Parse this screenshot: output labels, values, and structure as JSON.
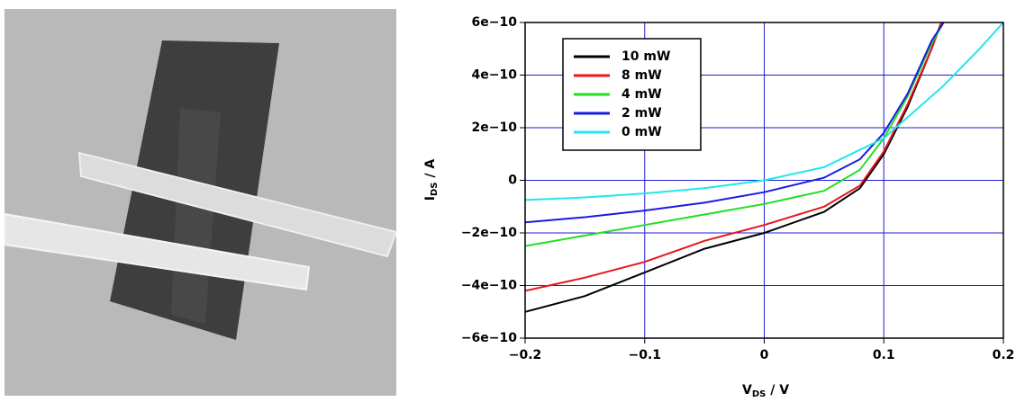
{
  "chart_data": {
    "type": "line",
    "xlabel": {
      "main": "V",
      "sub": "DS",
      "unit": " / V"
    },
    "ylabel": {
      "main": "I",
      "sub": "DS",
      "unit": " / A"
    },
    "xlim": [
      -0.2,
      0.2
    ],
    "ylim": [
      -6e-10,
      6e-10
    ],
    "xticks": [
      {
        "value": -0.2,
        "label": "−0.2"
      },
      {
        "value": -0.1,
        "label": "−0.1"
      },
      0,
      0.1,
      0.2
    ],
    "yticks": [
      {
        "value": -6e-10,
        "label": "−6e−10"
      },
      {
        "value": -4e-10,
        "label": "−4e−10"
      },
      {
        "value": -2e-10,
        "label": "−2e−10"
      },
      0,
      {
        "value": 2e-10,
        "label": "2e−10"
      },
      {
        "value": 4e-10,
        "label": "4e−10"
      },
      {
        "value": 6e-10,
        "label": "6e−10"
      }
    ],
    "grid": true,
    "grid_color": "#1f1fd0",
    "legend": "upper left",
    "series": [
      {
        "name": "10 mW",
        "color": "#000000",
        "x": [
          -0.2,
          -0.15,
          -0.1,
          -0.05,
          0,
          0.05,
          0.08,
          0.1,
          0.12,
          0.14,
          0.148
        ],
        "values": [
          -5e-10,
          -4.4e-10,
          -3.5e-10,
          -2.6e-10,
          -2e-10,
          -1.2e-10,
          -3e-11,
          1e-10,
          2.8e-10,
          5e-10,
          6e-10
        ]
      },
      {
        "name": "8 mW",
        "color": "#e8161b",
        "x": [
          -0.2,
          -0.15,
          -0.1,
          -0.05,
          0,
          0.05,
          0.08,
          0.1,
          0.12,
          0.14,
          0.148
        ],
        "values": [
          -4.2e-10,
          -3.7e-10,
          -3.1e-10,
          -2.3e-10,
          -1.7e-10,
          -1e-10,
          -2e-11,
          1.1e-10,
          2.9e-10,
          5e-10,
          6e-10
        ]
      },
      {
        "name": "4 mW",
        "color": "#22dd22",
        "x": [
          -0.2,
          -0.15,
          -0.1,
          -0.05,
          0,
          0.05,
          0.08,
          0.1,
          0.12,
          0.14,
          0.15
        ],
        "values": [
          -2.5e-10,
          -2.1e-10,
          -1.7e-10,
          -1.3e-10,
          -9e-11,
          -4e-11,
          4e-11,
          1.6e-10,
          3.2e-10,
          5.2e-10,
          6e-10
        ]
      },
      {
        "name": "2 mW",
        "color": "#1a1adf",
        "x": [
          -0.2,
          -0.15,
          -0.1,
          -0.05,
          0,
          0.05,
          0.08,
          0.1,
          0.12,
          0.14,
          0.15
        ],
        "values": [
          -1.6e-10,
          -1.4e-10,
          -1.15e-10,
          -8.5e-11,
          -4.5e-11,
          1e-11,
          8e-11,
          1.8e-10,
          3.3e-10,
          5.3e-10,
          6e-10
        ]
      },
      {
        "name": "0 mW",
        "color": "#22e5ee",
        "x": [
          -0.2,
          -0.15,
          -0.1,
          -0.05,
          0,
          0.05,
          0.1,
          0.12,
          0.15,
          0.18,
          0.2
        ],
        "values": [
          -7.5e-11,
          -6.5e-11,
          -5e-11,
          -3e-11,
          0,
          5e-11,
          1.6e-10,
          2.4e-10,
          3.6e-10,
          5e-10,
          6e-10
        ]
      }
    ]
  }
}
